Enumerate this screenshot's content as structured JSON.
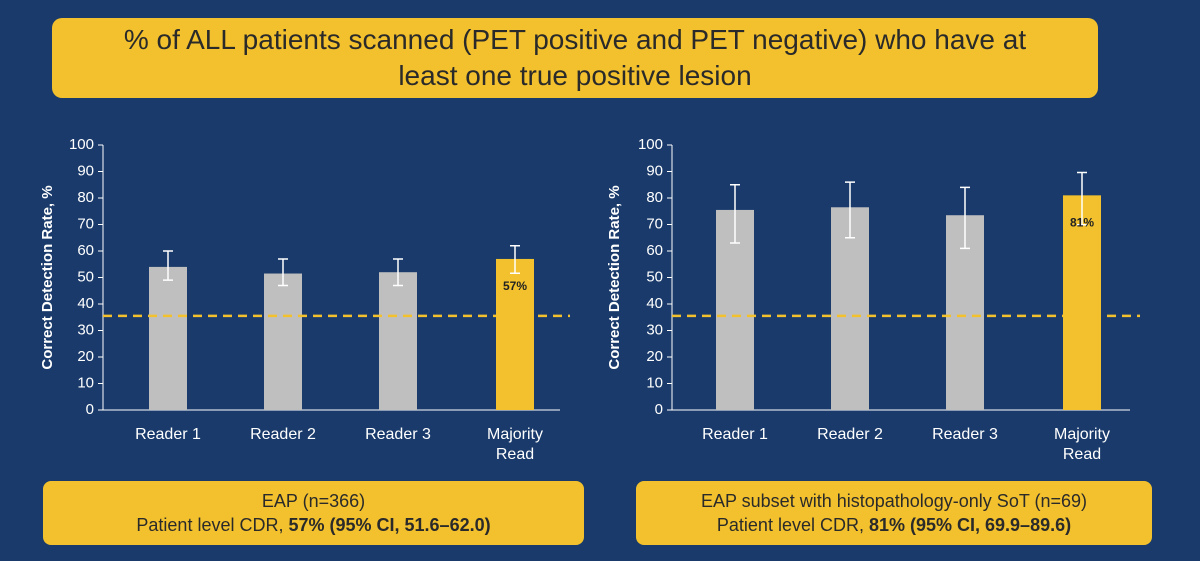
{
  "title": "% of ALL patients scanned (PET positive and PET negative) who have at least one true positive lesion",
  "chart_data": [
    {
      "type": "bar",
      "ylabel": "Correct Detection Rate, %",
      "categories": [
        "Reader 1",
        "Reader 2",
        "Reader 3",
        "Majority Read"
      ],
      "values": [
        54,
        51.5,
        52,
        57
      ],
      "ci_low": [
        49,
        47,
        47,
        51.6
      ],
      "ci_high": [
        60,
        57,
        57,
        62.0
      ],
      "value_labels": [
        null,
        null,
        null,
        "57%"
      ],
      "colors": [
        "#bfbfbf",
        "#bfbfbf",
        "#bfbfbf",
        "#f3c12d"
      ],
      "ref_line": 35.5,
      "ref_color": "#f3c12d",
      "ylim": [
        0,
        100
      ],
      "yticks": [
        0,
        10,
        20,
        30,
        40,
        50,
        60,
        70,
        80,
        90,
        100
      ],
      "caption_line1": "EAP (n=366)",
      "caption_line2": "Patient level CDR, ",
      "caption_line2_bold": "57% (95% CI, 51.6–62.0)"
    },
    {
      "type": "bar",
      "ylabel": "Correct Detection Rate, %",
      "categories": [
        "Reader 1",
        "Reader 2",
        "Reader 3",
        "Majority Read"
      ],
      "values": [
        75.5,
        76.5,
        73.5,
        81
      ],
      "ci_low": [
        63,
        65,
        61,
        69.9
      ],
      "ci_high": [
        85,
        86,
        84,
        89.6
      ],
      "value_labels": [
        null,
        null,
        null,
        "81%"
      ],
      "colors": [
        "#bfbfbf",
        "#bfbfbf",
        "#bfbfbf",
        "#f3c12d"
      ],
      "ref_line": 35.5,
      "ref_color": "#f3c12d",
      "ylim": [
        0,
        100
      ],
      "yticks": [
        0,
        10,
        20,
        30,
        40,
        50,
        60,
        70,
        80,
        90,
        100
      ],
      "caption_line1": "EAP subset with histopathology-only SoT (n=69)",
      "caption_line2": "Patient level CDR, ",
      "caption_line2_bold": "81% (95% CI, 69.9–89.6)"
    }
  ]
}
